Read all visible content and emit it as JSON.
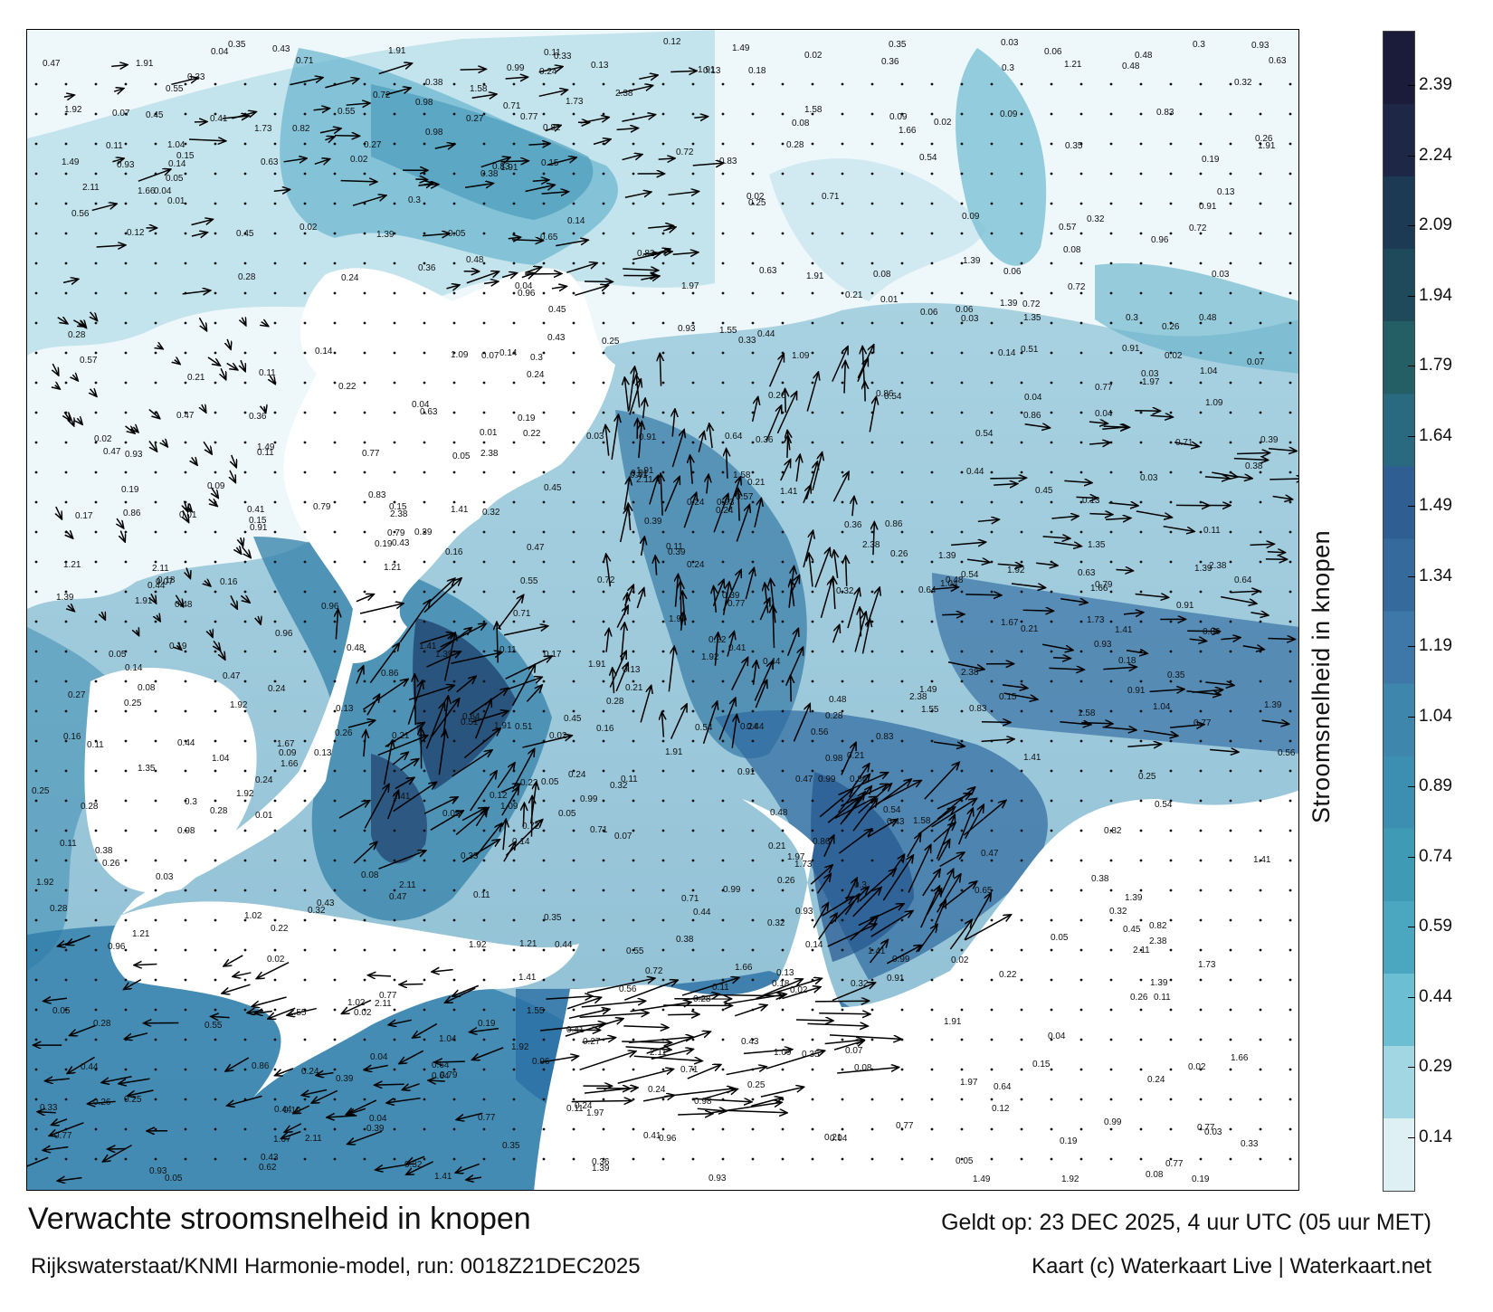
{
  "map": {
    "title": "Verwachte stroomsnelheid in knopen",
    "model_line": "Rijkswaterstaat/KNMI Harmonie-model, run: 0018Z21DEC2025",
    "valid_line": "Geldt op: 23 DEC 2025, 4 uur UTC (05 uur MET)",
    "credit_line": "Kaart (c) Waterkaart Live | Waterkaart.net",
    "colorbar_label": "Stroomsnelheid in knopen",
    "colorbar_ticks": [
      "2.39",
      "2.24",
      "2.09",
      "1.94",
      "1.79",
      "1.64",
      "1.49",
      "1.34",
      "1.19",
      "1.04",
      "0.89",
      "0.74",
      "0.59",
      "0.44",
      "0.29",
      "0.14"
    ],
    "colorbar_colors": [
      "#1b1b3a",
      "#1f2747",
      "#1d3a55",
      "#1e4a5c",
      "#255f66",
      "#2a6a80",
      "#2f5f92",
      "#356b9c",
      "#3d78a8",
      "#3f86ad",
      "#3c8fb0",
      "#3e9ab5",
      "#4aa7bf",
      "#6cbfd3",
      "#a3d6e3",
      "#dff0f5"
    ],
    "speed_labels": [
      "0.24",
      "0.39",
      "0.3",
      "0.25",
      "0.48",
      "0.38",
      "0.57",
      "0.64",
      "0.71",
      "0.44",
      "0.43",
      "0.65",
      "1.04",
      "0.99",
      "0.55",
      "0.41",
      "0.51",
      "0.28",
      "0.22",
      "0.24",
      "0.15",
      "0.17",
      "0.13",
      "0.32",
      "0.12",
      "0.19",
      "0.11",
      "0.16",
      "0.21",
      "0.26",
      "0.33",
      "0.36",
      "0.47",
      "0.56",
      "0.62",
      "0.77",
      "0.79",
      "0.82",
      "0.96",
      "1.21",
      "1.09",
      "1.49",
      "1.73",
      "1.66",
      "1.91",
      "1.55",
      "1.67",
      "1.58",
      "1.35",
      "1.97",
      "1.92",
      "2.38",
      "2.11",
      "1.41",
      "1.39",
      "0.86",
      "0.91",
      "1.02",
      "0.98",
      "0.83",
      "0.93",
      "0.72",
      "0.63",
      "0.54",
      "0.45",
      "0.35",
      "0.27",
      "0.18",
      "0.14",
      "0.09",
      "0.08",
      "0.07",
      "0.06",
      "0.05",
      "0.04",
      "0.03",
      "0.02",
      "0.01"
    ]
  }
}
